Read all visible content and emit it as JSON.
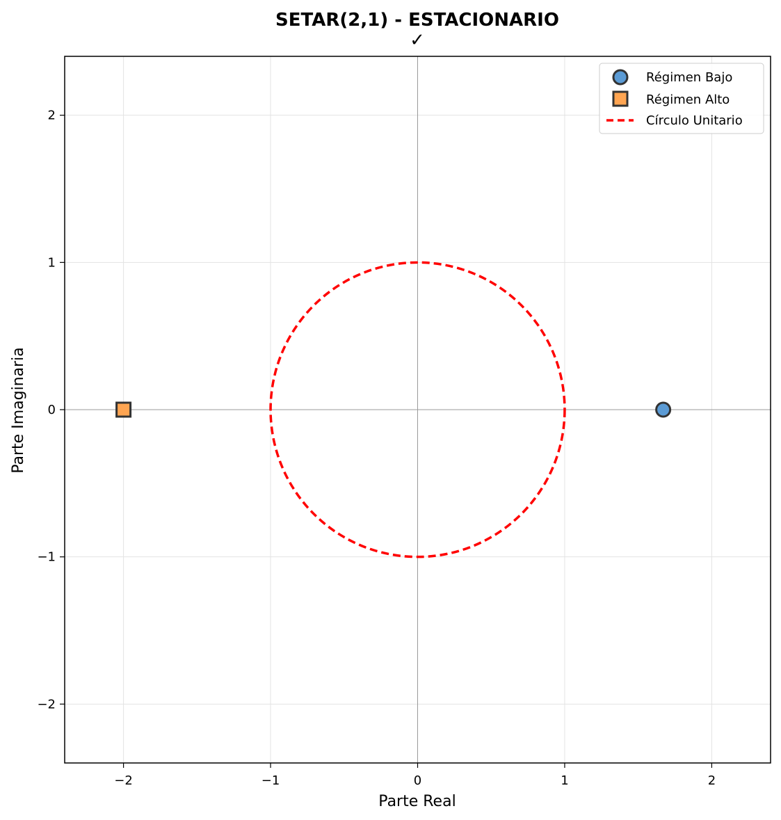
{
  "chart_data": {
    "type": "scatter",
    "title_line1": "SETAR(2,1) - ESTACIONARIO",
    "title_line2": "✓",
    "xlabel": "Parte Real",
    "ylabel": "Parte Imaginaria",
    "xlim": [
      -2.4,
      2.4
    ],
    "ylim": [
      -2.4,
      2.4
    ],
    "xticks": [
      -2,
      -1,
      0,
      1,
      2
    ],
    "yticks": [
      -2,
      -1,
      0,
      1,
      2
    ],
    "xtick_labels": [
      "−2",
      "−1",
      "0",
      "1",
      "2"
    ],
    "ytick_labels": [
      "−2",
      "−1",
      "0",
      "1",
      "2"
    ],
    "grid": true,
    "legend_position": "top-right",
    "series": [
      {
        "name": "Régimen Bajo",
        "marker": "circle",
        "color": "#5b9bd5",
        "edge": "#333333",
        "points": [
          {
            "x": 1.67,
            "y": 0
          }
        ]
      },
      {
        "name": "Régimen Alto",
        "marker": "square",
        "color": "#ffa552",
        "edge": "#333333",
        "points": [
          {
            "x": -2.0,
            "y": 0
          }
        ]
      }
    ],
    "unit_circle": {
      "name": "Círculo Unitario",
      "radius": 1,
      "color": "#ff0000",
      "style": "dashed"
    }
  }
}
